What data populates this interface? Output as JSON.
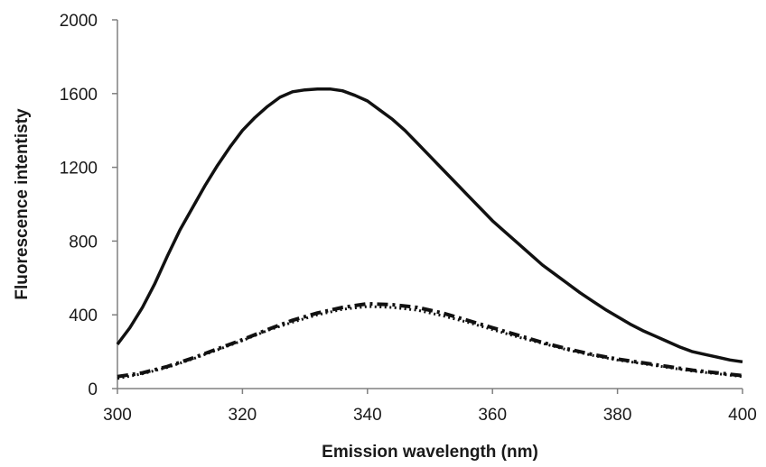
{
  "chart_data": {
    "type": "line",
    "title": "",
    "xlabel": "Emission wavelength (nm)",
    "ylabel": "Fluorescence intentisty",
    "xlim": [
      300,
      400
    ],
    "ylim": [
      0,
      2000
    ],
    "xticks": [
      "300",
      "320",
      "340",
      "360",
      "380",
      "400"
    ],
    "yticks": [
      "0",
      "400",
      "800",
      "1200",
      "1600",
      "2000"
    ],
    "grid": false,
    "legend": "none",
    "series": [
      {
        "style": "solid",
        "x": [
          300,
          302,
          304,
          306,
          308,
          310,
          312,
          314,
          316,
          318,
          320,
          322,
          324,
          326,
          328,
          330,
          332,
          334,
          336,
          338,
          340,
          342,
          344,
          346,
          348,
          350,
          352,
          354,
          356,
          358,
          360,
          362,
          364,
          366,
          368,
          370,
          372,
          374,
          376,
          378,
          380,
          382,
          384,
          386,
          388,
          390,
          392,
          394,
          396,
          398,
          400
        ],
        "y": [
          240,
          330,
          440,
          570,
          720,
          860,
          980,
          1100,
          1210,
          1310,
          1400,
          1470,
          1530,
          1580,
          1610,
          1620,
          1625,
          1625,
          1615,
          1590,
          1560,
          1510,
          1460,
          1400,
          1330,
          1260,
          1190,
          1120,
          1050,
          980,
          910,
          850,
          790,
          730,
          670,
          620,
          570,
          520,
          475,
          430,
          390,
          350,
          315,
          285,
          255,
          225,
          200,
          185,
          170,
          155,
          145
        ]
      },
      {
        "style": "dash-dot",
        "x": [
          300,
          304,
          308,
          312,
          316,
          320,
          324,
          328,
          332,
          336,
          340,
          344,
          348,
          352,
          356,
          360,
          364,
          368,
          372,
          376,
          380,
          384,
          388,
          392,
          396,
          400
        ],
        "y": [
          65,
          85,
          120,
          165,
          215,
          265,
          320,
          370,
          410,
          440,
          460,
          455,
          440,
          410,
          370,
          330,
          290,
          250,
          215,
          185,
          160,
          140,
          120,
          100,
          85,
          70
        ]
      },
      {
        "style": "dotted",
        "x": [
          300,
          304,
          308,
          312,
          316,
          320,
          324,
          328,
          332,
          336,
          340,
          344,
          348,
          352,
          356,
          360,
          364,
          368,
          372,
          376,
          380,
          384,
          388,
          392,
          396,
          400
        ],
        "y": [
          55,
          80,
          115,
          160,
          210,
          260,
          315,
          360,
          400,
          430,
          445,
          440,
          425,
          395,
          360,
          320,
          280,
          245,
          210,
          180,
          155,
          135,
          115,
          95,
          80,
          65
        ]
      }
    ]
  }
}
